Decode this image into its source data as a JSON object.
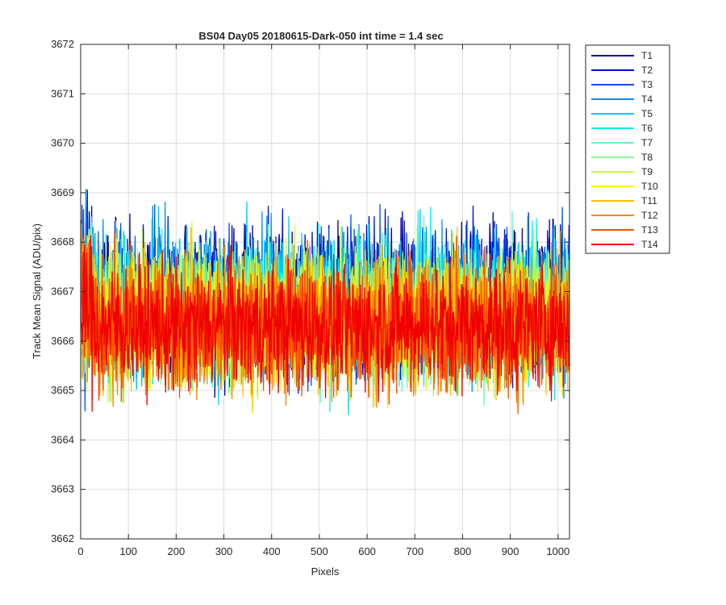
{
  "chart_data": {
    "type": "line",
    "title": "BS04 Day05 20180615-Dark-050 int time = 1.4 sec",
    "xlabel": "Pixels",
    "ylabel": "Track Mean Signal (ADU/pix)",
    "xlim": [
      0,
      1024
    ],
    "ylim": [
      3662,
      3672
    ],
    "xticks": [
      0,
      100,
      200,
      300,
      400,
      500,
      600,
      700,
      800,
      900,
      1000
    ],
    "yticks": [
      3662,
      3663,
      3664,
      3665,
      3666,
      3667,
      3668,
      3669,
      3670,
      3671,
      3672
    ],
    "grid": true,
    "legend_position": "outside-top-right",
    "series": [
      {
        "name": "T1",
        "color": "#0000a8",
        "mean": 3666.9,
        "amplitude": 1.25
      },
      {
        "name": "T2",
        "color": "#0010d8",
        "mean": 3666.85,
        "amplitude": 1.25
      },
      {
        "name": "T3",
        "color": "#0050f0",
        "mean": 3666.8,
        "amplitude": 1.25
      },
      {
        "name": "T4",
        "color": "#0090f8",
        "mean": 3666.75,
        "amplitude": 1.25
      },
      {
        "name": "T5",
        "color": "#00c8f8",
        "mean": 3666.7,
        "amplitude": 1.25
      },
      {
        "name": "T6",
        "color": "#10f0f0",
        "mean": 3666.65,
        "amplitude": 1.25
      },
      {
        "name": "T7",
        "color": "#60f8c0",
        "mean": 3666.6,
        "amplitude": 1.2
      },
      {
        "name": "T8",
        "color": "#90f890",
        "mean": 3666.55,
        "amplitude": 1.2
      },
      {
        "name": "T9",
        "color": "#c8f848",
        "mean": 3666.5,
        "amplitude": 1.2
      },
      {
        "name": "T10",
        "color": "#f8f000",
        "mean": 3666.45,
        "amplitude": 1.2
      },
      {
        "name": "T11",
        "color": "#f8c000",
        "mean": 3666.4,
        "amplitude": 1.2
      },
      {
        "name": "T12",
        "color": "#f88800",
        "mean": 3666.35,
        "amplitude": 1.2
      },
      {
        "name": "T13",
        "color": "#f85000",
        "mean": 3666.3,
        "amplitude": 1.15
      },
      {
        "name": "T14",
        "color": "#f00000",
        "mean": 3666.3,
        "amplitude": 1.1
      }
    ]
  }
}
